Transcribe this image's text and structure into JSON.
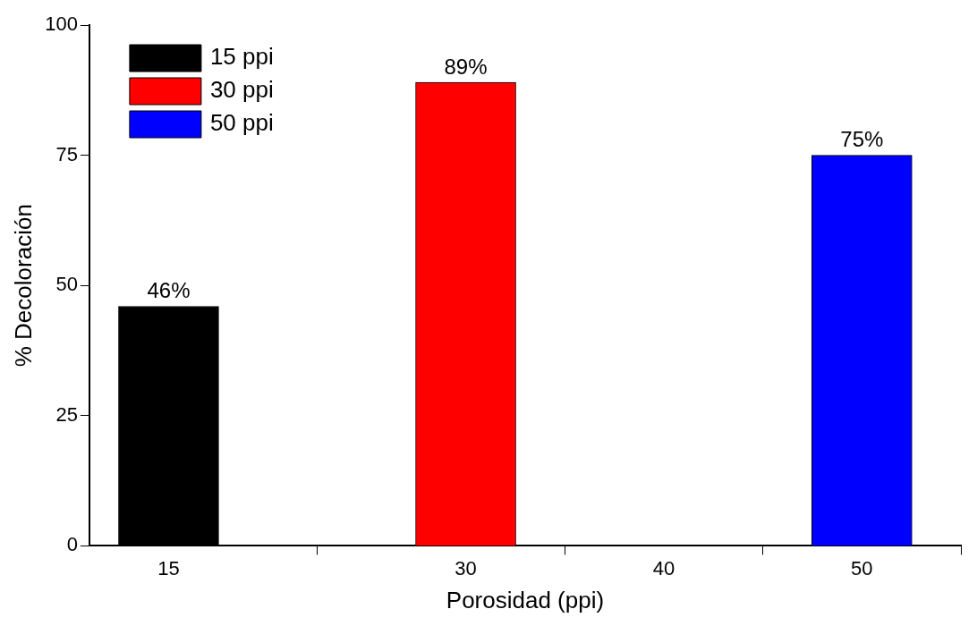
{
  "chart_data": {
    "type": "bar",
    "xlabel": "Porosidad (ppi)",
    "ylabel": "% Decoloración",
    "series": [
      {
        "name": "15 ppi",
        "color": "#000000",
        "x": [
          15
        ],
        "values": [
          46
        ],
        "value_labels": [
          "46%"
        ]
      },
      {
        "name": "30 ppi",
        "color": "#ff0000",
        "x": [
          30
        ],
        "values": [
          89
        ],
        "value_labels": [
          "89%"
        ]
      },
      {
        "name": "50 ppi",
        "color": "#0000ff",
        "x": [
          50
        ],
        "values": [
          75
        ],
        "value_labels": [
          "75%"
        ]
      }
    ],
    "xlim": [
      11,
      55
    ],
    "xticks": [
      15,
      30,
      40,
      50
    ],
    "ylim": [
      0,
      100
    ],
    "yticks": [
      0,
      25,
      50,
      75,
      100
    ],
    "grid": false,
    "legend": "top left"
  }
}
